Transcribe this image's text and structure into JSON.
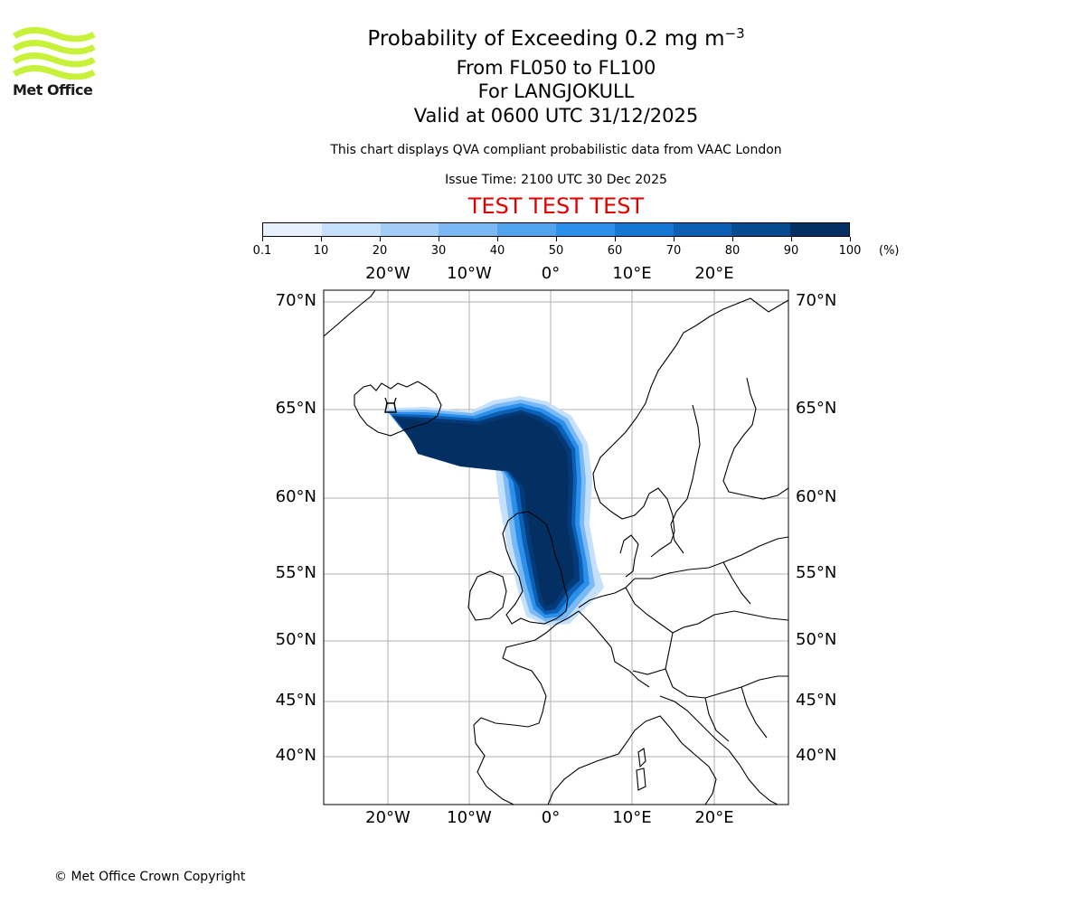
{
  "logo": {
    "text": "Met Office",
    "color": "#c8f23a"
  },
  "header": {
    "title_main": "Probability of Exceeding 0.2 mg m",
    "title_exponent": "−3",
    "flight_levels": "From FL050 to FL100",
    "location": "For LANGJOKULL",
    "valid_time": "Valid at 0600 UTC 31/12/2025",
    "description": "This chart displays QVA compliant probabilistic data from VAAC London",
    "issue_time": "Issue Time: 2100 UTC 30 Dec 2025",
    "test_banner": "TEST TEST TEST",
    "test_color": "#e00000"
  },
  "colorbar": {
    "tick_labels": [
      "0.1",
      "10",
      "20",
      "30",
      "40",
      "50",
      "60",
      "70",
      "80",
      "90",
      "100"
    ],
    "unit": "(%)",
    "colors": [
      "#e6f1fd",
      "#c5e0fa",
      "#a1cdf7",
      "#7ab9f4",
      "#52a4f0",
      "#2b8fec",
      "#1477d6",
      "#0b60b5",
      "#064b90",
      "#032f63"
    ]
  },
  "map": {
    "projection": "lat-lon",
    "lon_labels": [
      "20°W",
      "10°W",
      "0°",
      "10°E",
      "20°E"
    ],
    "lat_labels": [
      "70°N",
      "65°N",
      "60°N",
      "55°N",
      "50°N",
      "45°N",
      "40°N"
    ],
    "gridlines": true,
    "volcano": "LANGJOKULL",
    "plume_description_levels": [
      "10",
      "30",
      "50",
      "70",
      "90",
      "100"
    ]
  },
  "footer": {
    "copyright": "© Met Office Crown Copyright"
  }
}
